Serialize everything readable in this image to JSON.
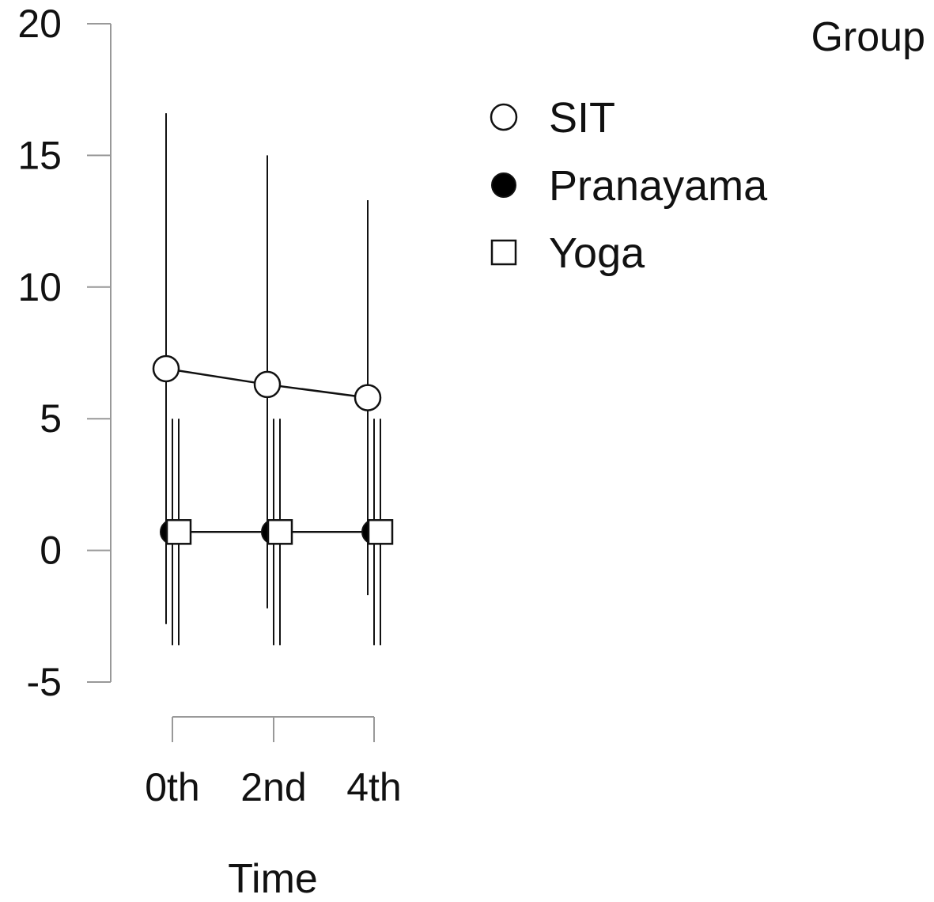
{
  "chart_data": {
    "type": "line",
    "title": "",
    "xlabel": "Time",
    "ylabel": "",
    "categories": [
      "0th",
      "2nd",
      "4th"
    ],
    "ylim": [
      -5,
      20
    ],
    "yticks": [
      -5,
      0,
      5,
      10,
      15,
      20
    ],
    "grid": false,
    "legend": {
      "title": "Group",
      "placement": "top-right"
    },
    "series": [
      {
        "name": "SIT",
        "marker": "open-circle",
        "values": [
          6.9,
          6.3,
          5.8
        ],
        "error_low": [
          -2.8,
          -2.2,
          -1.7
        ],
        "error_high": [
          16.6,
          15.0,
          13.3
        ]
      },
      {
        "name": "Pranayama",
        "marker": "filled-circle",
        "values": [
          0.7,
          0.7,
          0.7
        ],
        "error_low": [
          -3.6,
          -3.6,
          -3.6
        ],
        "error_high": [
          5.0,
          5.0,
          5.0
        ]
      },
      {
        "name": "Yoga",
        "marker": "open-square",
        "values": [
          0.7,
          0.7,
          0.7
        ],
        "error_low": [
          -3.6,
          -3.6,
          -3.6
        ],
        "error_high": [
          5.0,
          5.0,
          5.0
        ]
      }
    ],
    "colors": {
      "axis": "#999999",
      "line": "#111111",
      "marker_fill_open": "#ffffff",
      "marker_fill_solid": "#000000"
    }
  }
}
